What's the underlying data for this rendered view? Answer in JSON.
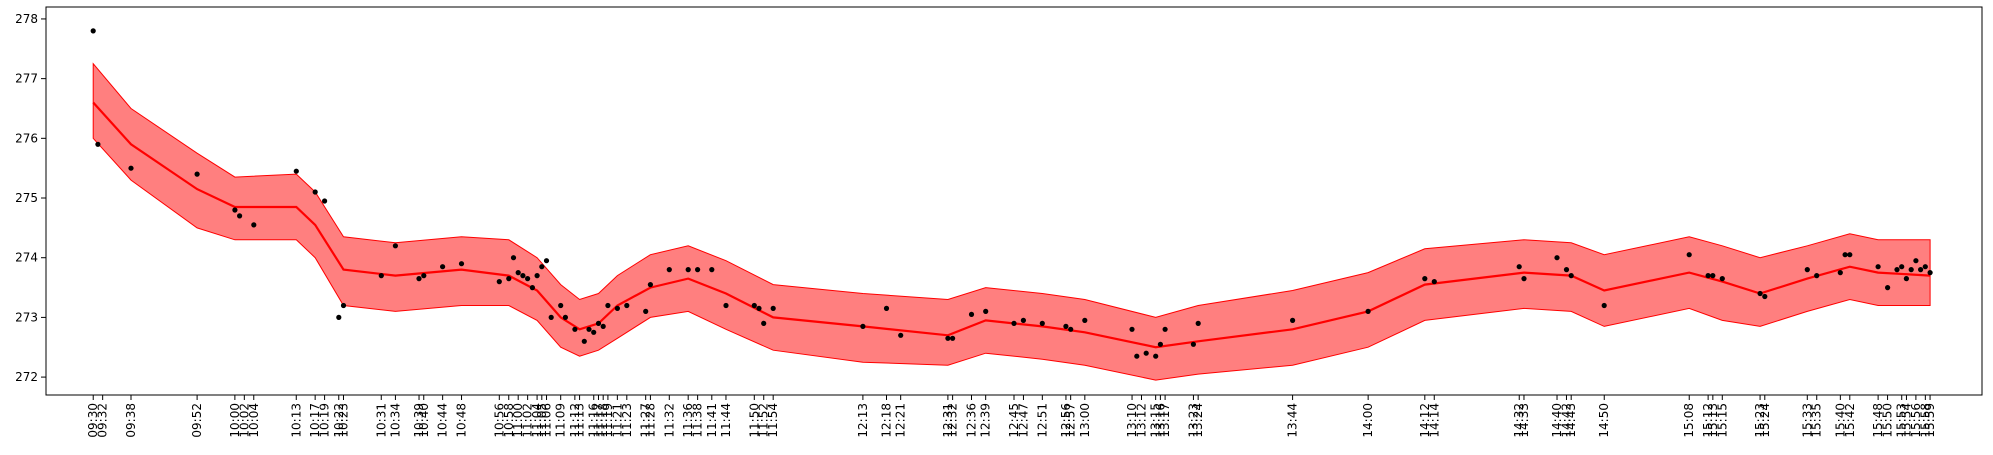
{
  "chart_data": {
    "type": "line",
    "title": "",
    "xlabel": "",
    "ylabel": "",
    "ylim": [
      271.7,
      278.2
    ],
    "yticks": [
      272,
      273,
      274,
      275,
      276,
      277,
      278
    ],
    "grid": false,
    "colors": {
      "line": "#ff0000",
      "band": "#ff7f7f",
      "band_edge": "#ff0000",
      "points": "#000000"
    },
    "xtick_labels": [
      "09:30",
      "09:32",
      "09:38",
      "09:52",
      "10:00",
      "10:02",
      "10:04",
      "10:13",
      "10:17",
      "10:19",
      "10:22",
      "10:23",
      "10:31",
      "10:34",
      "10:39",
      "10:40",
      "10:44",
      "10:48",
      "10:56",
      "10:58",
      "11:00",
      "11:02",
      "11:04",
      "11:05",
      "11:06",
      "11:09",
      "11:12",
      "11:13",
      "11:16",
      "11:17",
      "11:18",
      "11:19",
      "11:21",
      "11:23",
      "11:27",
      "11:28",
      "11:32",
      "11:36",
      "11:38",
      "11:41",
      "11:44",
      "11:50",
      "11:52",
      "11:54",
      "12:13",
      "12:18",
      "12:21",
      "12:31",
      "12:32",
      "12:36",
      "12:39",
      "12:45",
      "12:47",
      "12:51",
      "12:56",
      "12:57",
      "13:00",
      "13:10",
      "13:12",
      "13:15",
      "13:16",
      "13:17",
      "13:23",
      "13:24",
      "13:44",
      "14:00",
      "14:12",
      "14:14",
      "14:32",
      "14:33",
      "14:40",
      "14:42",
      "14:43",
      "14:50",
      "15:08",
      "15:12",
      "15:13",
      "15:15",
      "15:23",
      "15:24",
      "15:33",
      "15:35",
      "15:40",
      "15:42",
      "15:48",
      "15:50",
      "15:53",
      "15:54",
      "15:56",
      "15:58",
      "15:59"
    ],
    "points": [
      {
        "x": "09:30",
        "y": 277.8
      },
      {
        "x": "09:31",
        "y": 275.9
      },
      {
        "x": "09:38",
        "y": 275.5
      },
      {
        "x": "09:52",
        "y": 275.4
      },
      {
        "x": "10:00",
        "y": 274.8
      },
      {
        "x": "10:01",
        "y": 274.7
      },
      {
        "x": "10:04",
        "y": 274.55
      },
      {
        "x": "10:13",
        "y": 275.45
      },
      {
        "x": "10:17",
        "y": 275.1
      },
      {
        "x": "10:19",
        "y": 274.95
      },
      {
        "x": "10:22",
        "y": 273.0
      },
      {
        "x": "10:23",
        "y": 273.2
      },
      {
        "x": "10:31",
        "y": 273.7
      },
      {
        "x": "10:34",
        "y": 274.2
      },
      {
        "x": "10:39",
        "y": 273.65
      },
      {
        "x": "10:40",
        "y": 273.7
      },
      {
        "x": "10:44",
        "y": 273.85
      },
      {
        "x": "10:48",
        "y": 273.9
      },
      {
        "x": "10:56",
        "y": 273.6
      },
      {
        "x": "10:58",
        "y": 273.65
      },
      {
        "x": "10:59",
        "y": 274.0
      },
      {
        "x": "11:00",
        "y": 273.75
      },
      {
        "x": "11:01",
        "y": 273.7
      },
      {
        "x": "11:02",
        "y": 273.65
      },
      {
        "x": "11:03",
        "y": 273.5
      },
      {
        "x": "11:04",
        "y": 273.7
      },
      {
        "x": "11:05",
        "y": 273.85
      },
      {
        "x": "11:06",
        "y": 273.95
      },
      {
        "x": "11:07",
        "y": 273.0
      },
      {
        "x": "11:09",
        "y": 273.2
      },
      {
        "x": "11:10",
        "y": 273.0
      },
      {
        "x": "11:12",
        "y": 272.8
      },
      {
        "x": "11:14",
        "y": 272.6
      },
      {
        "x": "11:15",
        "y": 272.8
      },
      {
        "x": "11:16",
        "y": 272.75
      },
      {
        "x": "11:17",
        "y": 272.9
      },
      {
        "x": "11:18",
        "y": 272.85
      },
      {
        "x": "11:19",
        "y": 273.2
      },
      {
        "x": "11:21",
        "y": 273.15
      },
      {
        "x": "11:23",
        "y": 273.2
      },
      {
        "x": "11:27",
        "y": 273.1
      },
      {
        "x": "11:28",
        "y": 273.55
      },
      {
        "x": "11:32",
        "y": 273.8
      },
      {
        "x": "11:36",
        "y": 273.8
      },
      {
        "x": "11:38",
        "y": 273.8
      },
      {
        "x": "11:41",
        "y": 273.8
      },
      {
        "x": "11:44",
        "y": 273.2
      },
      {
        "x": "11:50",
        "y": 273.2
      },
      {
        "x": "11:51",
        "y": 273.15
      },
      {
        "x": "11:52",
        "y": 272.9
      },
      {
        "x": "11:54",
        "y": 273.15
      },
      {
        "x": "12:13",
        "y": 272.85
      },
      {
        "x": "12:18",
        "y": 273.15
      },
      {
        "x": "12:21",
        "y": 272.7
      },
      {
        "x": "12:31",
        "y": 272.65
      },
      {
        "x": "12:32",
        "y": 272.65
      },
      {
        "x": "12:36",
        "y": 273.05
      },
      {
        "x": "12:39",
        "y": 273.1
      },
      {
        "x": "12:45",
        "y": 272.9
      },
      {
        "x": "12:47",
        "y": 272.95
      },
      {
        "x": "12:51",
        "y": 272.9
      },
      {
        "x": "12:56",
        "y": 272.85
      },
      {
        "x": "12:57",
        "y": 272.8
      },
      {
        "x": "13:00",
        "y": 272.95
      },
      {
        "x": "13:10",
        "y": 272.8
      },
      {
        "x": "13:11",
        "y": 272.35
      },
      {
        "x": "13:13",
        "y": 272.4
      },
      {
        "x": "13:15",
        "y": 272.35
      },
      {
        "x": "13:16",
        "y": 272.55
      },
      {
        "x": "13:17",
        "y": 272.8
      },
      {
        "x": "13:23",
        "y": 272.55
      },
      {
        "x": "13:24",
        "y": 272.9
      },
      {
        "x": "13:44",
        "y": 272.95
      },
      {
        "x": "14:00",
        "y": 273.1
      },
      {
        "x": "14:12",
        "y": 273.65
      },
      {
        "x": "14:14",
        "y": 273.6
      },
      {
        "x": "14:32",
        "y": 273.85
      },
      {
        "x": "14:33",
        "y": 273.65
      },
      {
        "x": "14:40",
        "y": 274.0
      },
      {
        "x": "14:42",
        "y": 273.8
      },
      {
        "x": "14:43",
        "y": 273.7
      },
      {
        "x": "14:50",
        "y": 273.2
      },
      {
        "x": "15:08",
        "y": 274.05
      },
      {
        "x": "15:12",
        "y": 273.7
      },
      {
        "x": "15:13",
        "y": 273.7
      },
      {
        "x": "15:15",
        "y": 273.65
      },
      {
        "x": "15:23",
        "y": 273.4
      },
      {
        "x": "15:24",
        "y": 273.35
      },
      {
        "x": "15:33",
        "y": 273.8
      },
      {
        "x": "15:35",
        "y": 273.7
      },
      {
        "x": "15:40",
        "y": 273.75
      },
      {
        "x": "15:41",
        "y": 274.05
      },
      {
        "x": "15:42",
        "y": 274.05
      },
      {
        "x": "15:48",
        "y": 273.85
      },
      {
        "x": "15:50",
        "y": 273.5
      },
      {
        "x": "15:52",
        "y": 273.8
      },
      {
        "x": "15:53",
        "y": 273.85
      },
      {
        "x": "15:54",
        "y": 273.65
      },
      {
        "x": "15:55",
        "y": 273.8
      },
      {
        "x": "15:56",
        "y": 273.95
      },
      {
        "x": "15:57",
        "y": 273.8
      },
      {
        "x": "15:58",
        "y": 273.85
      },
      {
        "x": "15:59",
        "y": 273.75
      }
    ],
    "trend": {
      "x": [
        "09:30",
        "09:38",
        "09:52",
        "10:00",
        "10:13",
        "10:17",
        "10:23",
        "10:34",
        "10:48",
        "10:58",
        "11:04",
        "11:09",
        "11:13",
        "11:17",
        "11:21",
        "11:28",
        "11:36",
        "11:44",
        "11:54",
        "12:13",
        "12:31",
        "12:39",
        "12:51",
        "13:00",
        "13:15",
        "13:24",
        "13:44",
        "14:00",
        "14:12",
        "14:33",
        "14:43",
        "14:50",
        "15:08",
        "15:15",
        "15:23",
        "15:33",
        "15:42",
        "15:48",
        "15:59"
      ],
      "y": [
        276.6,
        275.9,
        275.15,
        274.85,
        274.85,
        274.55,
        273.8,
        273.7,
        273.8,
        273.7,
        273.45,
        273.0,
        272.8,
        272.9,
        273.2,
        273.5,
        273.65,
        273.4,
        273.0,
        272.85,
        272.7,
        272.95,
        272.85,
        272.75,
        272.5,
        272.6,
        272.8,
        273.1,
        273.55,
        273.75,
        273.7,
        273.45,
        273.75,
        273.6,
        273.4,
        273.65,
        273.85,
        273.75,
        273.7
      ],
      "lower": [
        276.0,
        275.3,
        274.5,
        274.3,
        274.3,
        274.0,
        273.2,
        273.1,
        273.2,
        273.2,
        272.95,
        272.5,
        272.35,
        272.45,
        272.65,
        273.0,
        273.1,
        272.8,
        272.45,
        272.25,
        272.2,
        272.4,
        272.3,
        272.2,
        271.95,
        272.05,
        272.2,
        272.5,
        272.95,
        273.15,
        273.1,
        272.85,
        273.15,
        272.95,
        272.85,
        273.1,
        273.3,
        273.2,
        273.2
      ],
      "upper": [
        277.25,
        276.5,
        275.75,
        275.35,
        275.4,
        275.1,
        274.35,
        274.25,
        274.35,
        274.3,
        274.0,
        273.55,
        273.3,
        273.4,
        273.7,
        274.05,
        274.2,
        273.95,
        273.55,
        273.4,
        273.3,
        273.5,
        273.4,
        273.3,
        273.0,
        273.2,
        273.45,
        273.75,
        274.15,
        274.3,
        274.25,
        274.05,
        274.35,
        274.2,
        274.0,
        274.2,
        274.4,
        274.3,
        274.3
      ]
    }
  }
}
